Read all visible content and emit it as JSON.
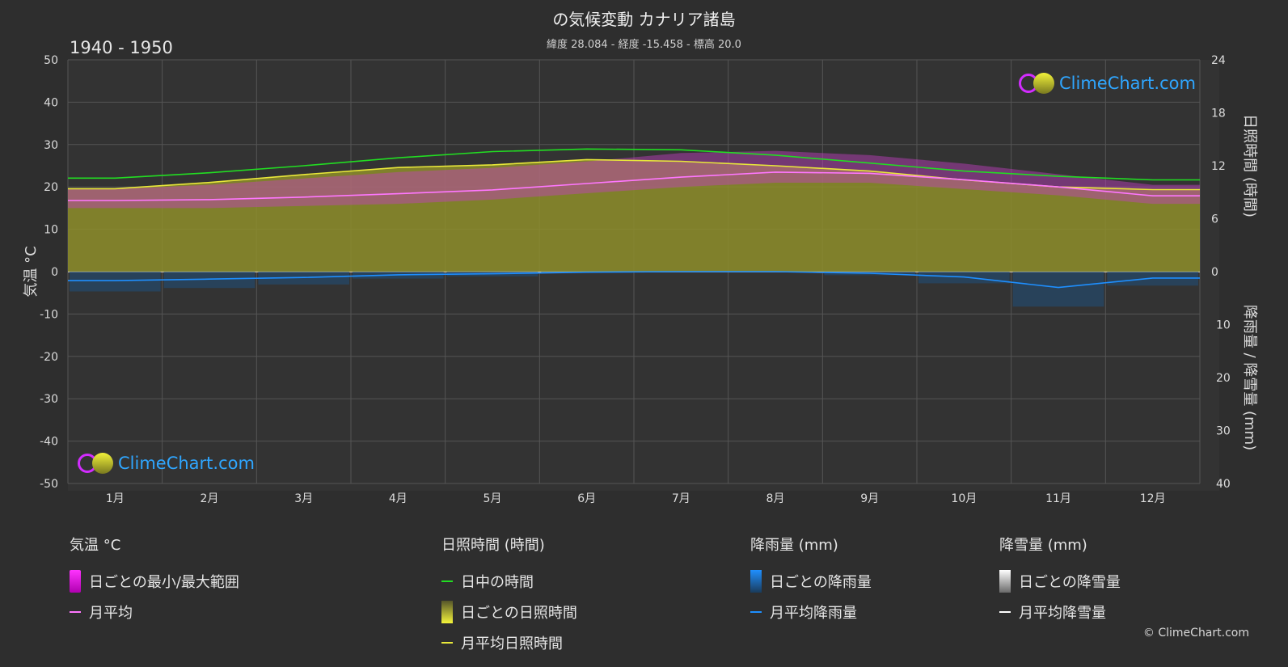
{
  "header": {
    "title": "の気候変動 カナリア諸島",
    "subtitle": "緯度 28.084 - 経度 -15.458 - 標高 20.0",
    "period": "1940 - 1950"
  },
  "logo_text": "ClimeChart.com",
  "copyright": "© ClimeChart.com",
  "chart_data": {
    "type": "line",
    "categories": [
      "1月",
      "2月",
      "3月",
      "4月",
      "5月",
      "6月",
      "7月",
      "8月",
      "9月",
      "10月",
      "11月",
      "12月"
    ],
    "left_axis": {
      "label": "気温 °C",
      "range": [
        -50,
        50
      ],
      "ticks": [
        50,
        40,
        30,
        20,
        10,
        0,
        -10,
        -20,
        -30,
        -40,
        -50
      ]
    },
    "right_axis_top": {
      "label": "日照時間 (時間)",
      "range": [
        0,
        24
      ],
      "ticks": [
        24,
        18,
        12,
        6,
        0
      ]
    },
    "right_axis_bottom": {
      "label": "降雨量 / 降雪量 (mm)",
      "range": [
        0,
        40
      ],
      "ticks": [
        10,
        20,
        30,
        40
      ]
    },
    "series": [
      {
        "name": "日中の時間",
        "axis": "sun",
        "color": "#22dd22",
        "values": [
          10.6,
          11.2,
          12.0,
          12.9,
          13.6,
          13.9,
          13.8,
          13.2,
          12.3,
          11.4,
          10.8,
          10.4
        ]
      },
      {
        "name": "月平均日照時間",
        "axis": "sun",
        "color": "#e8e83a",
        "values": [
          9.4,
          10.1,
          11.0,
          11.8,
          12.1,
          12.7,
          12.5,
          12.0,
          11.4,
          10.4,
          9.6,
          9.3
        ]
      },
      {
        "name": "月平均",
        "axis": "temp",
        "color": "#ff77ff",
        "values": [
          16.8,
          17.0,
          17.6,
          18.4,
          19.3,
          20.8,
          22.3,
          23.5,
          23.2,
          21.7,
          20.0,
          17.9
        ]
      },
      {
        "name": "月平均降雨量",
        "axis": "rain",
        "color": "#1e8fff",
        "values": [
          1.7,
          1.4,
          1.1,
          0.6,
          0.4,
          0.1,
          0.0,
          0.0,
          0.3,
          1.0,
          3.0,
          1.2
        ]
      },
      {
        "name": "月平均降雪量",
        "axis": "rain",
        "color": "#ffffff",
        "values": [
          0,
          0,
          0,
          0,
          0,
          0,
          0,
          0,
          0,
          0,
          0,
          0
        ]
      }
    ],
    "temp_range": {
      "name": "日ごとの最小/最大範囲",
      "min": [
        15.0,
        15.0,
        15.5,
        16.0,
        17.0,
        18.5,
        20.0,
        21.0,
        21.0,
        19.5,
        18.0,
        16.0
      ],
      "max": [
        19.5,
        20.5,
        22.0,
        23.5,
        24.5,
        26.0,
        28.0,
        28.5,
        27.5,
        25.5,
        23.0,
        20.5
      ]
    },
    "grid": true
  },
  "legend": {
    "temperature": {
      "head": "気温 °C",
      "items": [
        "日ごとの最小/最大範囲",
        "月平均"
      ]
    },
    "sunshine": {
      "head": "日照時間 (時間)",
      "items": [
        "日中の時間",
        "日ごとの日照時間",
        "月平均日照時間"
      ]
    },
    "rain": {
      "head": "降雨量 (mm)",
      "items": [
        "日ごとの降雨量",
        "月平均降雨量"
      ]
    },
    "snow": {
      "head": "降雪量 (mm)",
      "items": [
        "日ごとの降雪量",
        "月平均降雪量"
      ]
    }
  },
  "colors": {
    "background": "#2e2e2e",
    "plot_background": "#333333",
    "grid": "#555555",
    "sunshine_fill": "#8e8e2a",
    "temp_range_fill": "#c43ec4",
    "rain_bar": "#1f4f7a"
  }
}
